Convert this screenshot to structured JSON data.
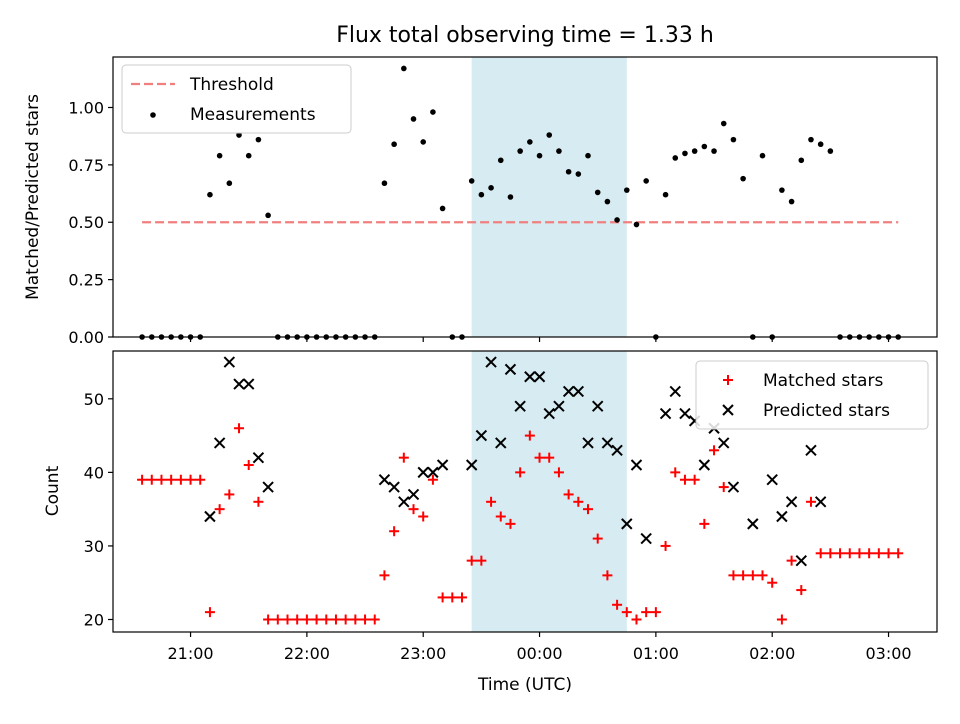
{
  "title": "Flux total observing time = 1.33 h",
  "colors": {
    "threshold": "#f08080",
    "measurement": "#000000",
    "matched": "#ff0000",
    "predicted": "#000000",
    "shade": "#add8e6"
  },
  "chart_data": [
    {
      "type": "scatter",
      "ylabel": "Matched/Predicted stars",
      "xlabel": "",
      "x_unit": "time (UTC)",
      "ylim": [
        0,
        1.22
      ],
      "yticks": [
        "0.00",
        "0.25",
        "0.50",
        "0.75",
        "1.00"
      ],
      "legend": "top-left",
      "highlight": {
        "x_start": "23:25",
        "x_end": "00:45"
      },
      "threshold": {
        "name": "Threshold",
        "y": 0.5,
        "x_start": "20:35",
        "x_end": "03:05"
      },
      "series": [
        {
          "name": "Measurements",
          "points": [
            [
              "20:35",
              0
            ],
            [
              "20:40",
              0
            ],
            [
              "20:45",
              0
            ],
            [
              "20:50",
              0
            ],
            [
              "20:55",
              0
            ],
            [
              "21:00",
              0
            ],
            [
              "21:05",
              0
            ],
            [
              "21:10",
              0.62
            ],
            [
              "21:15",
              0.79
            ],
            [
              "21:20",
              0.67
            ],
            [
              "21:25",
              0.88
            ],
            [
              "21:30",
              0.79
            ],
            [
              "21:35",
              0.86
            ],
            [
              "21:40",
              0.53
            ],
            [
              "21:45",
              0
            ],
            [
              "21:50",
              0
            ],
            [
              "21:55",
              0
            ],
            [
              "22:00",
              0
            ],
            [
              "22:05",
              0
            ],
            [
              "22:10",
              0
            ],
            [
              "22:15",
              0
            ],
            [
              "22:20",
              0
            ],
            [
              "22:25",
              0
            ],
            [
              "22:30",
              0
            ],
            [
              "22:35",
              0
            ],
            [
              "22:40",
              0.67
            ],
            [
              "22:45",
              0.84
            ],
            [
              "22:50",
              1.17
            ],
            [
              "22:55",
              0.95
            ],
            [
              "23:00",
              0.85
            ],
            [
              "23:05",
              0.98
            ],
            [
              "23:10",
              0.56
            ],
            [
              "23:15",
              0
            ],
            [
              "23:20",
              0
            ],
            [
              "23:25",
              0.68
            ],
            [
              "23:30",
              0.62
            ],
            [
              "23:35",
              0.65
            ],
            [
              "23:40",
              0.77
            ],
            [
              "23:45",
              0.61
            ],
            [
              "23:50",
              0.81
            ],
            [
              "23:55",
              0.85
            ],
            [
              "00:00",
              0.79
            ],
            [
              "00:05",
              0.88
            ],
            [
              "00:10",
              0.81
            ],
            [
              "00:15",
              0.72
            ],
            [
              "00:20",
              0.71
            ],
            [
              "00:25",
              0.79
            ],
            [
              "00:30",
              0.63
            ],
            [
              "00:35",
              0.59
            ],
            [
              "00:40",
              0.51
            ],
            [
              "00:45",
              0.64
            ],
            [
              "00:50",
              0.49
            ],
            [
              "00:55",
              0.68
            ],
            [
              "01:00",
              0
            ],
            [
              "01:05",
              0.62
            ],
            [
              "01:10",
              0.78
            ],
            [
              "01:15",
              0.8
            ],
            [
              "01:20",
              0.81
            ],
            [
              "01:25",
              0.83
            ],
            [
              "01:30",
              0.81
            ],
            [
              "01:35",
              0.93
            ],
            [
              "01:40",
              0.86
            ],
            [
              "01:45",
              0.69
            ],
            [
              "01:50",
              0
            ],
            [
              "01:55",
              0.79
            ],
            [
              "02:00",
              0
            ],
            [
              "02:05",
              0.64
            ],
            [
              "02:10",
              0.59
            ],
            [
              "02:15",
              0.77
            ],
            [
              "02:20",
              0.86
            ],
            [
              "02:25",
              0.84
            ],
            [
              "02:30",
              0.81
            ],
            [
              "02:35",
              0
            ],
            [
              "02:40",
              0
            ],
            [
              "02:45",
              0
            ],
            [
              "02:50",
              0
            ],
            [
              "02:55",
              0
            ],
            [
              "03:00",
              0
            ],
            [
              "03:05",
              0
            ]
          ]
        }
      ]
    },
    {
      "type": "scatter",
      "ylabel": "Count",
      "xlabel": "Time (UTC)",
      "ylim": [
        18.3,
        56.5
      ],
      "yticks": [
        20,
        30,
        40,
        50
      ],
      "xlim": [
        "20:20",
        "03:25"
      ],
      "xticks": [
        "21:00",
        "22:00",
        "23:00",
        "00:00",
        "01:00",
        "02:00",
        "03:00"
      ],
      "legend": "top-right",
      "highlight": {
        "x_start": "23:25",
        "x_end": "00:45"
      },
      "series": [
        {
          "name": "Matched stars",
          "points": [
            [
              "20:35",
              39
            ],
            [
              "20:40",
              39
            ],
            [
              "20:45",
              39
            ],
            [
              "20:50",
              39
            ],
            [
              "20:55",
              39
            ],
            [
              "21:00",
              39
            ],
            [
              "21:05",
              39
            ],
            [
              "21:10",
              21
            ],
            [
              "21:15",
              35
            ],
            [
              "21:20",
              37
            ],
            [
              "21:25",
              46
            ],
            [
              "21:30",
              41
            ],
            [
              "21:35",
              36
            ],
            [
              "21:40",
              20
            ],
            [
              "21:45",
              20
            ],
            [
              "21:50",
              20
            ],
            [
              "21:55",
              20
            ],
            [
              "22:00",
              20
            ],
            [
              "22:05",
              20
            ],
            [
              "22:10",
              20
            ],
            [
              "22:15",
              20
            ],
            [
              "22:20",
              20
            ],
            [
              "22:25",
              20
            ],
            [
              "22:30",
              20
            ],
            [
              "22:35",
              20
            ],
            [
              "22:40",
              26
            ],
            [
              "22:45",
              32
            ],
            [
              "22:50",
              42
            ],
            [
              "22:55",
              35
            ],
            [
              "23:00",
              34
            ],
            [
              "23:05",
              39
            ],
            [
              "23:10",
              23
            ],
            [
              "23:15",
              23
            ],
            [
              "23:20",
              23
            ],
            [
              "23:25",
              28
            ],
            [
              "23:30",
              28
            ],
            [
              "23:35",
              36
            ],
            [
              "23:40",
              34
            ],
            [
              "23:45",
              33
            ],
            [
              "23:50",
              40
            ],
            [
              "23:55",
              45
            ],
            [
              "00:00",
              42
            ],
            [
              "00:05",
              42
            ],
            [
              "00:10",
              40
            ],
            [
              "00:15",
              37
            ],
            [
              "00:20",
              36
            ],
            [
              "00:25",
              35
            ],
            [
              "00:30",
              31
            ],
            [
              "00:35",
              26
            ],
            [
              "00:40",
              22
            ],
            [
              "00:45",
              21
            ],
            [
              "00:50",
              20
            ],
            [
              "00:55",
              21
            ],
            [
              "01:00",
              21
            ],
            [
              "01:05",
              30
            ],
            [
              "01:10",
              40
            ],
            [
              "01:15",
              39
            ],
            [
              "01:20",
              39
            ],
            [
              "01:25",
              33
            ],
            [
              "01:30",
              43
            ],
            [
              "01:35",
              38
            ],
            [
              "01:40",
              26
            ],
            [
              "01:45",
              26
            ],
            [
              "01:50",
              26
            ],
            [
              "01:55",
              26
            ],
            [
              "02:00",
              25
            ],
            [
              "02:05",
              20
            ],
            [
              "02:10",
              28
            ],
            [
              "02:15",
              24
            ],
            [
              "02:20",
              36
            ],
            [
              "02:25",
              29
            ],
            [
              "02:30",
              29
            ],
            [
              "02:35",
              29
            ],
            [
              "02:40",
              29
            ],
            [
              "02:45",
              29
            ],
            [
              "02:50",
              29
            ],
            [
              "02:55",
              29
            ],
            [
              "03:00",
              29
            ],
            [
              "03:05",
              29
            ]
          ]
        },
        {
          "name": "Predicted stars",
          "points": [
            [
              "21:10",
              34
            ],
            [
              "21:15",
              44
            ],
            [
              "21:20",
              55
            ],
            [
              "21:25",
              52
            ],
            [
              "21:30",
              52
            ],
            [
              "21:35",
              42
            ],
            [
              "21:40",
              38
            ],
            [
              "22:40",
              39
            ],
            [
              "22:45",
              38
            ],
            [
              "22:50",
              36
            ],
            [
              "22:55",
              37
            ],
            [
              "23:00",
              40
            ],
            [
              "23:05",
              40
            ],
            [
              "23:10",
              41
            ],
            [
              "23:25",
              41
            ],
            [
              "23:30",
              45
            ],
            [
              "23:35",
              55
            ],
            [
              "23:40",
              44
            ],
            [
              "23:45",
              54
            ],
            [
              "23:50",
              49
            ],
            [
              "23:55",
              53
            ],
            [
              "00:00",
              53
            ],
            [
              "00:05",
              48
            ],
            [
              "00:10",
              49
            ],
            [
              "00:15",
              51
            ],
            [
              "00:20",
              51
            ],
            [
              "00:25",
              44
            ],
            [
              "00:30",
              49
            ],
            [
              "00:35",
              44
            ],
            [
              "00:40",
              43
            ],
            [
              "00:45",
              33
            ],
            [
              "00:50",
              41
            ],
            [
              "00:55",
              31
            ],
            [
              "01:05",
              48
            ],
            [
              "01:10",
              51
            ],
            [
              "01:15",
              48
            ],
            [
              "01:20",
              47
            ],
            [
              "01:25",
              41
            ],
            [
              "01:30",
              46
            ],
            [
              "01:35",
              44
            ],
            [
              "01:40",
              38
            ],
            [
              "01:50",
              33
            ],
            [
              "02:00",
              39
            ],
            [
              "02:05",
              34
            ],
            [
              "02:10",
              36
            ],
            [
              "02:15",
              28
            ],
            [
              "02:20",
              43
            ],
            [
              "02:25",
              36
            ]
          ]
        }
      ]
    }
  ]
}
